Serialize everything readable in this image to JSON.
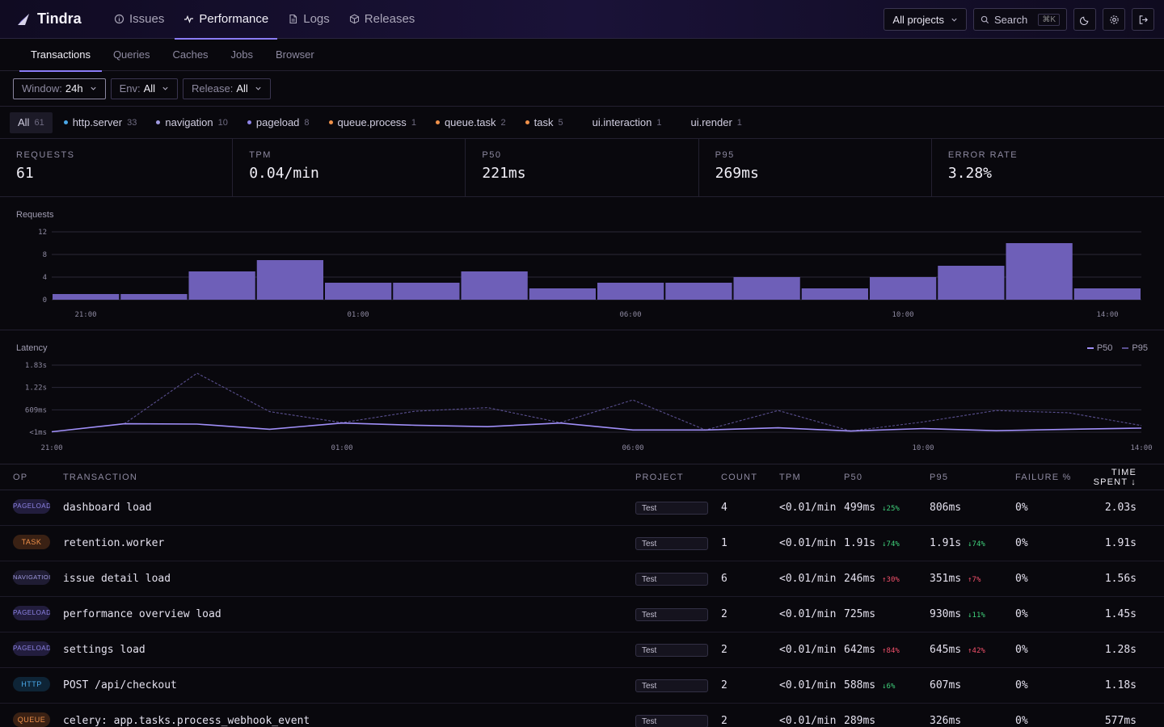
{
  "app": {
    "name": "Tindra",
    "brand_color": "#8b7cf6"
  },
  "nav": {
    "tabs": [
      {
        "label": "Issues",
        "icon": "info-circle-icon"
      },
      {
        "label": "Performance",
        "icon": "pulse-icon",
        "active": true
      },
      {
        "label": "Logs",
        "icon": "document-icon"
      },
      {
        "label": "Releases",
        "icon": "package-icon"
      }
    ],
    "project_select": "All projects",
    "search_label": "Search",
    "search_shortcut": "⌘K"
  },
  "subtabs": [
    "Transactions",
    "Queries",
    "Caches",
    "Jobs",
    "Browser"
  ],
  "filters": [
    {
      "label": "Window:",
      "value": "24h"
    },
    {
      "label": "Env:",
      "value": "All"
    },
    {
      "label": "Release:",
      "value": "All"
    }
  ],
  "ops": [
    {
      "label": "All",
      "count": "61",
      "color": ""
    },
    {
      "label": "http.server",
      "count": "33",
      "color": "#4aa8e8"
    },
    {
      "label": "navigation",
      "count": "10",
      "color": "#a09ae0"
    },
    {
      "label": "pageload",
      "count": "8",
      "color": "#8f85e8"
    },
    {
      "label": "queue.process",
      "count": "1",
      "color": "#f0914a"
    },
    {
      "label": "queue.task",
      "count": "2",
      "color": "#f0914a"
    },
    {
      "label": "task",
      "count": "5",
      "color": "#f0914a"
    },
    {
      "label": "ui.interaction",
      "count": "1",
      "color": ""
    },
    {
      "label": "ui.render",
      "count": "1",
      "color": ""
    }
  ],
  "stats": [
    {
      "label": "REQUESTS",
      "value": "61"
    },
    {
      "label": "TPM",
      "value": "0.04/min"
    },
    {
      "label": "P50",
      "value": "221ms"
    },
    {
      "label": "P95",
      "value": "269ms"
    },
    {
      "label": "ERROR RATE",
      "value": "3.28%"
    }
  ],
  "chart_data": [
    {
      "type": "bar",
      "title": "Requests",
      "yticks": [
        "12",
        "8",
        "4",
        "0"
      ],
      "ylim": [
        0,
        12
      ],
      "xticks": [
        "21:00",
        "01:00",
        "06:00",
        "10:00",
        "14:00"
      ],
      "values": [
        1,
        1,
        5,
        7,
        3,
        3,
        5,
        2,
        3,
        3,
        4,
        2,
        4,
        6,
        10,
        2
      ],
      "color": "#6e5fb8"
    },
    {
      "type": "line",
      "title": "Latency",
      "yticks": [
        "1.83s",
        "1.22s",
        "609ms",
        "<1ms"
      ],
      "ylim": [
        0,
        1830
      ],
      "xticks": [
        "21:00",
        "01:00",
        "06:00",
        "10:00",
        "14:00"
      ],
      "series": [
        {
          "name": "P50",
          "color": "#a08ff8",
          "values": [
            10,
            230,
            220,
            80,
            250,
            190,
            150,
            250,
            60,
            60,
            120,
            30,
            100,
            40,
            80,
            110
          ]
        },
        {
          "name": "P95",
          "color": "#5a5090",
          "values": [
            10,
            230,
            1610,
            560,
            260,
            570,
            670,
            260,
            880,
            60,
            590,
            30,
            280,
            590,
            530,
            180
          ]
        }
      ]
    }
  ],
  "table": {
    "headers": {
      "op": "OP",
      "tx": "TRANSACTION",
      "proj": "PROJECT",
      "count": "COUNT",
      "tpm": "TPM",
      "p50": "P50",
      "p95": "P95",
      "fail": "FAILURE %",
      "time": "TIME SPENT ↓"
    },
    "rows": [
      {
        "op": "PAGELOAD",
        "opclass": "pageload",
        "tx": "dashboard load",
        "proj": "Test",
        "count": "4",
        "tpm": "<0.01/min",
        "p50": "499ms",
        "p50d": "↓25%",
        "p50dir": "down",
        "p95": "806ms",
        "p95d": "",
        "p95dir": "",
        "fail": "0%",
        "time": "2.03s"
      },
      {
        "op": "TASK",
        "opclass": "task",
        "tx": "retention.worker",
        "proj": "Test",
        "count": "1",
        "tpm": "<0.01/min",
        "p50": "1.91s",
        "p50d": "↓74%",
        "p50dir": "down",
        "p95": "1.91s",
        "p95d": "↓74%",
        "p95dir": "down",
        "fail": "0%",
        "time": "1.91s"
      },
      {
        "op": "NAVIGATION",
        "opclass": "navigation",
        "tx": "issue detail load",
        "proj": "Test",
        "count": "6",
        "tpm": "<0.01/min",
        "p50": "246ms",
        "p50d": "↑30%",
        "p50dir": "up",
        "p95": "351ms",
        "p95d": "↑7%",
        "p95dir": "up",
        "fail": "0%",
        "time": "1.56s"
      },
      {
        "op": "PAGELOAD",
        "opclass": "pageload",
        "tx": "performance overview load",
        "proj": "Test",
        "count": "2",
        "tpm": "<0.01/min",
        "p50": "725ms",
        "p50d": "",
        "p50dir": "",
        "p95": "930ms",
        "p95d": "↓11%",
        "p95dir": "down",
        "fail": "0%",
        "time": "1.45s"
      },
      {
        "op": "PAGELOAD",
        "opclass": "pageload",
        "tx": "settings load",
        "proj": "Test",
        "count": "2",
        "tpm": "<0.01/min",
        "p50": "642ms",
        "p50d": "↑84%",
        "p50dir": "up",
        "p95": "645ms",
        "p95d": "↑42%",
        "p95dir": "up",
        "fail": "0%",
        "time": "1.28s"
      },
      {
        "op": "HTTP",
        "opclass": "http",
        "tx": "POST /api/checkout",
        "proj": "Test",
        "count": "2",
        "tpm": "<0.01/min",
        "p50": "588ms",
        "p50d": "↓6%",
        "p50dir": "down",
        "p95": "607ms",
        "p95d": "",
        "p95dir": "",
        "fail": "0%",
        "time": "1.18s"
      },
      {
        "op": "QUEUE",
        "opclass": "queue",
        "tx": "celery: app.tasks.process_webhook_event",
        "proj": "Test",
        "count": "2",
        "tpm": "<0.01/min",
        "p50": "289ms",
        "p50d": "",
        "p50dir": "",
        "p95": "326ms",
        "p95d": "",
        "p95dir": "",
        "fail": "0%",
        "time": "577ms"
      }
    ]
  }
}
